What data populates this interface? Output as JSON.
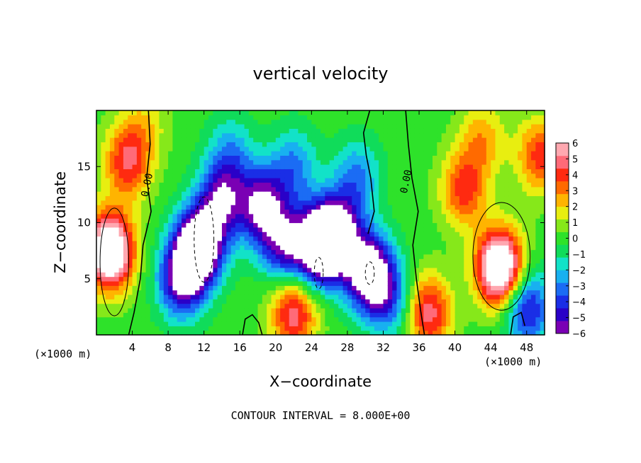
{
  "chart_data": {
    "type": "heatmap",
    "title": "vertical velocity",
    "xlabel": "X−coordinate",
    "ylabel": "Z−coordinate",
    "x_unit_label": "(×1000 m)",
    "x_unit_label_right": "(×1000 m)",
    "xlim": [
      0,
      50
    ],
    "ylim": [
      0,
      20
    ],
    "x_ticks": [
      "4",
      "8",
      "12",
      "16",
      "20",
      "24",
      "28",
      "32",
      "36",
      "40",
      "44",
      "48"
    ],
    "y_ticks": [
      "5",
      "10",
      "15"
    ],
    "colorbar": {
      "range": [
        -6,
        6
      ],
      "tick_labels": [
        "6",
        "5",
        "4",
        "3",
        "2",
        "1",
        "0",
        "−1",
        "−2",
        "−3",
        "−4",
        "−5",
        "−6"
      ],
      "colors": [
        "#7a00b4",
        "#2a00c8",
        "#1a2ee6",
        "#1b6cf4",
        "#18b0f0",
        "#12e2c8",
        "#10dc5a",
        "#2ee22a",
        "#86e81a",
        "#e8ee10",
        "#ffb400",
        "#ff6a00",
        "#ff2a10",
        "#ff6a78",
        "#ffa8b0"
      ]
    },
    "contour_labels": [
      "0.00",
      "0.00"
    ],
    "footer": "CONTOUR INTERVAL = 8.000E+00",
    "updrafts": [
      {
        "x": 1.5,
        "z": 7.5,
        "w": 9
      },
      {
        "x": 3.5,
        "z": 15.5,
        "w": 4.5
      },
      {
        "x": 41,
        "z": 13,
        "w": 4
      },
      {
        "x": 45,
        "z": 6,
        "w": 9
      },
      {
        "x": 37,
        "z": 2,
        "w": 5
      },
      {
        "x": 22,
        "z": 2,
        "w": 5
      },
      {
        "x": 49.5,
        "z": 16,
        "w": 4
      },
      {
        "x": 43,
        "z": 17.5,
        "w": 2.5
      },
      {
        "x": 5.5,
        "z": 19,
        "w": 1.5
      }
    ],
    "downdrafts": [
      {
        "x": 11.5,
        "z": 8,
        "w": -9
      },
      {
        "x": 14,
        "z": 12,
        "w": -5
      },
      {
        "x": 9.5,
        "z": 5,
        "w": -6
      },
      {
        "x": 18.5,
        "z": 11.5,
        "w": -6
      },
      {
        "x": 21,
        "z": 8,
        "w": -5
      },
      {
        "x": 25,
        "z": 8,
        "w": -9
      },
      {
        "x": 27,
        "z": 9,
        "w": -6
      },
      {
        "x": 30.5,
        "z": 5.5,
        "w": -8
      },
      {
        "x": 15,
        "z": 16,
        "w": -2.5
      },
      {
        "x": 22,
        "z": 15,
        "w": -3
      },
      {
        "x": 29,
        "z": 14,
        "w": -3
      },
      {
        "x": 48,
        "z": 2.5,
        "w": -5
      },
      {
        "x": 33,
        "z": 3,
        "w": -3
      }
    ]
  },
  "colors": {
    "frame": "#000000",
    "background": "#ffffff",
    "saturated": "#ffffff"
  }
}
